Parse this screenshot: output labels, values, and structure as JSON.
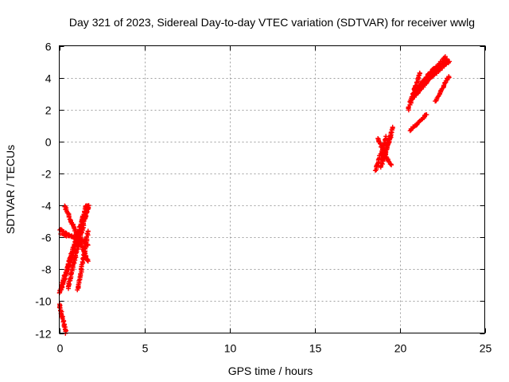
{
  "chart_data": {
    "type": "scatter",
    "title": "Day 321 of 2023, Sidereal Day-to-day VTEC variation (SDTVAR) for receiver wwlg",
    "xlabel": "GPS time / hours",
    "ylabel": "SDTVAR / TECUs",
    "xlim": [
      0,
      25
    ],
    "ylim": [
      -12,
      6
    ],
    "xticks": [
      "0",
      "5",
      "10",
      "15",
      "20",
      "25"
    ],
    "yticks": [
      "-12",
      "-10",
      "-8",
      "-6",
      "-4",
      "-2",
      "0",
      "2",
      "4",
      "6"
    ],
    "grid": true,
    "marker": "+",
    "color": "#ff0000",
    "segments": [
      {
        "x": [
          0.0,
          1.6
        ],
        "y": [
          -9.5,
          -4.0
        ]
      },
      {
        "x": [
          0.1,
          1.7
        ],
        "y": [
          -9.3,
          -4.1
        ]
      },
      {
        "x": [
          0.5,
          1.7
        ],
        "y": [
          -9.2,
          -4.0
        ]
      },
      {
        "x": [
          0.3,
          1.7
        ],
        "y": [
          -4.0,
          -7.5
        ]
      },
      {
        "x": [
          0.0,
          1.7
        ],
        "y": [
          -5.5,
          -6.5
        ]
      },
      {
        "x": [
          0.1,
          1.5
        ],
        "y": [
          -5.8,
          -6.2
        ]
      },
      {
        "x": [
          1.1,
          1.7
        ],
        "y": [
          -9.3,
          -5.6
        ]
      },
      {
        "x": [
          0.0,
          0.4
        ],
        "y": [
          -10.2,
          -12.0
        ]
      },
      {
        "x": [
          18.6,
          19.2
        ],
        "y": [
          -1.8,
          0.3
        ]
      },
      {
        "x": [
          18.9,
          19.6
        ],
        "y": [
          -1.6,
          0.9
        ]
      },
      {
        "x": [
          18.7,
          19.5
        ],
        "y": [
          0.2,
          -1.5
        ]
      },
      {
        "x": [
          19.0,
          19.5
        ],
        "y": [
          -1.2,
          0.4
        ]
      },
      {
        "x": [
          20.5,
          21.2
        ],
        "y": [
          2.0,
          4.3
        ]
      },
      {
        "x": [
          20.6,
          22.8
        ],
        "y": [
          2.5,
          5.2
        ]
      },
      {
        "x": [
          21.0,
          22.9
        ],
        "y": [
          3.2,
          5.0
        ]
      },
      {
        "x": [
          21.3,
          22.7
        ],
        "y": [
          3.7,
          5.3
        ]
      },
      {
        "x": [
          20.6,
          21.6
        ],
        "y": [
          0.7,
          1.7
        ]
      },
      {
        "x": [
          22.1,
          22.9
        ],
        "y": [
          2.5,
          4.1
        ]
      },
      {
        "x": [
          20.8,
          22.0
        ],
        "y": [
          3.0,
          4.6
        ]
      }
    ]
  }
}
